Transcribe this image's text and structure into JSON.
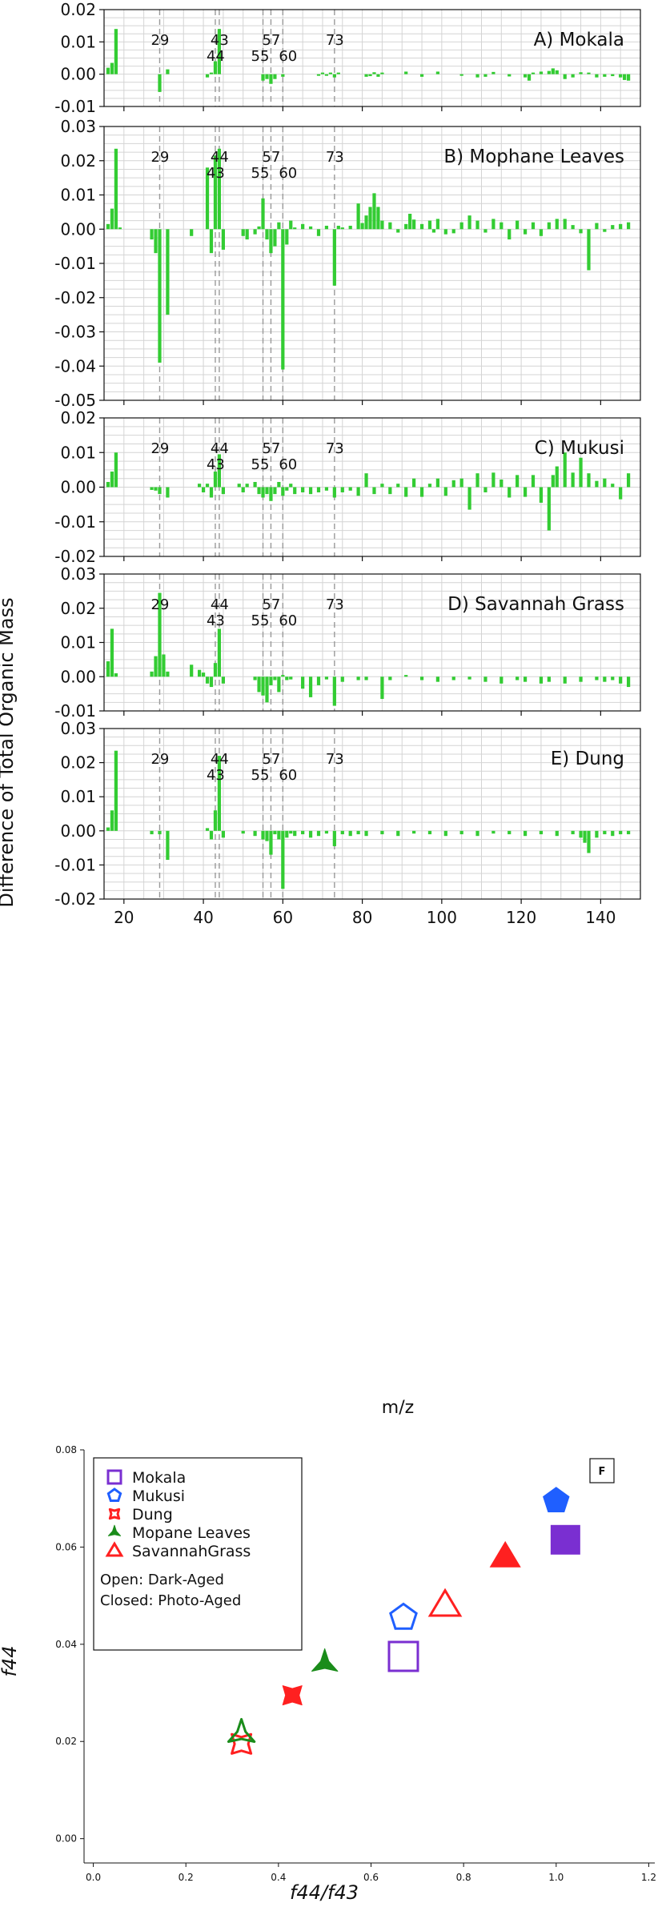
{
  "figure": {
    "ylabel": "Difference of Total Organic Mass",
    "xlabel": "m/z",
    "colors": {
      "bar": "#33cc33",
      "grid": "#d4d4d4",
      "marker_line": "#999999"
    }
  },
  "chart_data": [
    {
      "type": "bar",
      "title": "A) Mokala",
      "ylim": [
        -0.01,
        0.02
      ],
      "yticks": [
        "0.02",
        "0.01",
        "0.00",
        "-0.01"
      ],
      "xlim": [
        15,
        150
      ],
      "xticks": [
        "20",
        "40",
        "60",
        "80",
        "100",
        "120",
        "140"
      ],
      "grid": true,
      "marker_labels": [
        "29",
        "44",
        "43",
        "55",
        "57",
        "60",
        "73"
      ],
      "x": [
        16,
        17,
        18,
        29,
        31,
        41,
        42,
        43,
        44,
        55,
        56,
        57,
        58,
        60,
        69,
        70,
        71,
        72,
        73,
        74,
        81,
        82,
        83,
        84,
        85,
        91,
        95,
        99,
        105,
        109,
        111,
        113,
        117,
        121,
        122,
        123,
        125,
        127,
        128,
        129,
        131,
        133,
        135,
        137,
        139,
        141,
        143,
        145,
        146,
        147
      ],
      "values": [
        0.002,
        0.0035,
        0.014,
        -0.0055,
        0.0015,
        -0.001,
        0.0005,
        0.004,
        0.014,
        -0.002,
        -0.0015,
        -0.003,
        -0.0015,
        -0.0008,
        -0.0005,
        0.0005,
        -0.0005,
        0.0005,
        -0.001,
        0.0005,
        -0.0008,
        -0.0006,
        0.0006,
        -0.0008,
        0.0005,
        0.0008,
        -0.0008,
        0.0008,
        -0.0005,
        -0.001,
        -0.0008,
        0.0007,
        -0.0007,
        -0.001,
        -0.002,
        0.0005,
        0.0008,
        0.001,
        0.0018,
        0.0012,
        -0.0015,
        -0.001,
        0.0006,
        0.0005,
        -0.001,
        -0.0008,
        -0.0006,
        -0.001,
        -0.0018,
        -0.002
      ]
    },
    {
      "type": "bar",
      "title": "B) Mophane Leaves",
      "ylim": [
        -0.05,
        0.03
      ],
      "yticks": [
        "0.03",
        "0.02",
        "0.01",
        "0.00",
        "-0.01",
        "-0.02",
        "-0.03",
        "-0.04",
        "-0.05"
      ],
      "xlim": [
        15,
        150
      ],
      "xticks": [
        "20",
        "40",
        "60",
        "80",
        "100",
        "120",
        "140"
      ],
      "grid": true,
      "marker_labels": [
        "29",
        "44",
        "43",
        "57",
        "55",
        "60",
        "73"
      ],
      "x": [
        16,
        17,
        18,
        19,
        27,
        28,
        29,
        31,
        37,
        41,
        42,
        43,
        44,
        45,
        50,
        51,
        53,
        54,
        55,
        56,
        57,
        58,
        59,
        60,
        61,
        62,
        63,
        65,
        67,
        69,
        71,
        73,
        74,
        75,
        77,
        79,
        80,
        81,
        82,
        83,
        84,
        85,
        87,
        89,
        91,
        92,
        93,
        95,
        97,
        98,
        99,
        101,
        103,
        105,
        107,
        109,
        111,
        113,
        115,
        117,
        119,
        121,
        123,
        125,
        127,
        129,
        131,
        133,
        135,
        137,
        139,
        141,
        143,
        145,
        147
      ],
      "values": [
        0.0015,
        0.006,
        0.0235,
        0.0005,
        -0.003,
        -0.007,
        -0.039,
        -0.025,
        -0.002,
        0.018,
        -0.007,
        0.0215,
        0.0235,
        -0.006,
        -0.002,
        -0.003,
        -0.0015,
        0.0008,
        0.009,
        -0.003,
        -0.007,
        -0.005,
        0.002,
        -0.041,
        -0.0045,
        0.0025,
        0.0005,
        0.0015,
        0.0008,
        -0.002,
        0.001,
        -0.0165,
        0.001,
        0.0005,
        0.001,
        0.0075,
        0.0018,
        0.004,
        0.0065,
        0.0105,
        0.0065,
        0.0025,
        0.002,
        -0.001,
        0.0015,
        0.0045,
        0.0028,
        0.0015,
        0.0025,
        -0.001,
        0.003,
        -0.0015,
        -0.0012,
        0.002,
        0.004,
        0.0025,
        -0.001,
        0.003,
        0.002,
        -0.003,
        0.0025,
        -0.0015,
        0.002,
        -0.002,
        0.002,
        0.003,
        0.003,
        0.0012,
        -0.0012,
        -0.012,
        0.0018,
        -0.0008,
        0.0012,
        0.0015,
        0.002
      ]
    },
    {
      "type": "bar",
      "title": "C) Mukusi",
      "ylim": [
        -0.02,
        0.02
      ],
      "yticks": [
        "0.02",
        "0.01",
        "0.00",
        "-0.01",
        "-0.02"
      ],
      "xlim": [
        15,
        150
      ],
      "xticks": [
        "20",
        "40",
        "60",
        "80",
        "100",
        "120",
        "140"
      ],
      "grid": true,
      "marker_labels": [
        "29",
        "44",
        "43",
        "57",
        "55",
        "60",
        "73"
      ],
      "x": [
        16,
        17,
        18,
        27,
        28,
        29,
        31,
        39,
        40,
        41,
        42,
        43,
        44,
        45,
        49,
        50,
        51,
        53,
        54,
        55,
        56,
        57,
        58,
        59,
        60,
        61,
        62,
        63,
        65,
        67,
        69,
        71,
        73,
        75,
        77,
        79,
        81,
        83,
        85,
        87,
        89,
        91,
        93,
        95,
        97,
        99,
        101,
        103,
        105,
        107,
        109,
        111,
        113,
        115,
        117,
        119,
        121,
        123,
        125,
        127,
        128,
        129,
        131,
        133,
        135,
        137,
        139,
        141,
        143,
        145,
        147
      ],
      "values": [
        0.0015,
        0.0045,
        0.01,
        -0.0008,
        -0.001,
        -0.002,
        -0.003,
        0.001,
        -0.0015,
        0.001,
        -0.003,
        0.0045,
        0.0095,
        -0.002,
        0.001,
        -0.0015,
        0.001,
        0.0015,
        -0.002,
        -0.003,
        -0.002,
        -0.004,
        -0.002,
        0.0015,
        -0.0025,
        -0.001,
        0.001,
        -0.002,
        -0.0015,
        -0.002,
        -0.0015,
        -0.001,
        -0.003,
        -0.0015,
        -0.001,
        -0.0025,
        0.004,
        -0.002,
        0.001,
        -0.002,
        0.001,
        -0.0028,
        0.0025,
        -0.0028,
        0.001,
        0.0025,
        -0.0025,
        0.002,
        0.0025,
        -0.0065,
        0.004,
        -0.0015,
        0.0042,
        0.0022,
        -0.003,
        0.0035,
        -0.0028,
        0.0035,
        -0.0045,
        -0.0125,
        0.0035,
        0.006,
        0.01,
        0.0042,
        0.0085,
        0.004,
        0.0018,
        0.0025,
        0.001,
        -0.0035,
        0.004
      ]
    },
    {
      "type": "bar",
      "title": "D) Savannah Grass",
      "ylim": [
        -0.01,
        0.03
      ],
      "yticks": [
        "0.03",
        "0.02",
        "0.01",
        "0.00",
        "-0.01"
      ],
      "xlim": [
        15,
        150
      ],
      "xticks": [
        "20",
        "40",
        "60",
        "80",
        "100",
        "120",
        "140"
      ],
      "grid": true,
      "marker_labels": [
        "29",
        "44",
        "43",
        "57",
        "55",
        "60",
        "73"
      ],
      "x": [
        16,
        17,
        18,
        27,
        28,
        29,
        30,
        31,
        37,
        39,
        40,
        41,
        42,
        43,
        44,
        45,
        53,
        54,
        55,
        56,
        57,
        58,
        59,
        60,
        61,
        62,
        65,
        67,
        69,
        71,
        73,
        75,
        79,
        81,
        85,
        87,
        91,
        95,
        99,
        103,
        107,
        111,
        115,
        119,
        121,
        125,
        127,
        131,
        135,
        139,
        141,
        143,
        145,
        147
      ],
      "values": [
        0.0045,
        0.014,
        0.001,
        0.0015,
        0.006,
        0.0245,
        0.0065,
        0.0015,
        0.0035,
        0.002,
        0.0012,
        -0.002,
        -0.003,
        0.004,
        0.014,
        -0.002,
        -0.001,
        -0.0045,
        -0.0055,
        -0.0075,
        -0.0025,
        -0.001,
        -0.0045,
        0.0005,
        -0.001,
        -0.0008,
        -0.0035,
        -0.006,
        -0.0025,
        -0.0008,
        -0.0085,
        -0.0015,
        -0.001,
        -0.001,
        -0.0065,
        -0.001,
        0.0005,
        -0.001,
        -0.0015,
        -0.001,
        -0.0008,
        -0.0015,
        -0.002,
        -0.001,
        -0.0015,
        -0.002,
        -0.0015,
        -0.002,
        -0.0015,
        -0.001,
        -0.0015,
        -0.001,
        -0.002,
        -0.003
      ]
    },
    {
      "type": "bar",
      "title": "E) Dung",
      "ylim": [
        -0.02,
        0.03
      ],
      "yticks": [
        "0.03",
        "0.02",
        "0.01",
        "0.00",
        "-0.01",
        "-0.02"
      ],
      "xlim": [
        15,
        150
      ],
      "xticks": [
        "20",
        "40",
        "60",
        "80",
        "100",
        "120",
        "140"
      ],
      "grid": true,
      "marker_labels": [
        "29",
        "44",
        "43",
        "57",
        "55",
        "60",
        "73"
      ],
      "x": [
        16,
        17,
        18,
        27,
        29,
        31,
        41,
        42,
        43,
        44,
        45,
        50,
        53,
        55,
        56,
        57,
        58,
        59,
        60,
        61,
        62,
        63,
        65,
        67,
        69,
        71,
        73,
        75,
        77,
        79,
        81,
        85,
        89,
        93,
        97,
        101,
        105,
        109,
        113,
        117,
        121,
        125,
        129,
        133,
        135,
        136,
        137,
        139,
        141,
        143,
        145,
        147
      ],
      "values": [
        0.001,
        0.006,
        0.0235,
        -0.001,
        -0.001,
        -0.0085,
        0.0008,
        -0.0025,
        0.006,
        0.022,
        -0.002,
        -0.0008,
        -0.0015,
        -0.0025,
        -0.003,
        -0.007,
        -0.001,
        -0.0025,
        -0.017,
        -0.002,
        -0.0008,
        -0.0015,
        -0.001,
        -0.002,
        -0.0015,
        -0.0008,
        -0.0045,
        -0.001,
        -0.0015,
        -0.001,
        -0.0015,
        -0.001,
        -0.0015,
        -0.0008,
        -0.001,
        -0.0015,
        -0.001,
        -0.0015,
        -0.0008,
        -0.001,
        -0.0015,
        -0.001,
        -0.0015,
        -0.001,
        -0.002,
        -0.0035,
        -0.0065,
        -0.002,
        -0.001,
        -0.0015,
        -0.001,
        -0.001
      ]
    },
    {
      "type": "scatter",
      "title": "F",
      "xlabel": "f44/f43",
      "ylabel": "f44",
      "xlim": [
        -0.02,
        1.22
      ],
      "ylim": [
        -0.005,
        0.08
      ],
      "xticks": [
        "0.0",
        "0.2",
        "0.4",
        "0.6",
        "0.8",
        "1.0",
        "1.2"
      ],
      "yticks": [
        "0.00",
        "0.02",
        "0.04",
        "0.06",
        "0.08"
      ],
      "legend": {
        "position": "upper-left",
        "entries": [
          "Mokala",
          "Mukusi",
          "Dung",
          "Mopane Leaves",
          "SavannahGrass"
        ],
        "notes": [
          "Open:   Dark-Aged",
          "Closed: Photo-Aged"
        ]
      },
      "series": [
        {
          "name": "Mokala",
          "color": "#7a2fd1",
          "shape": "square",
          "points": [
            {
              "x": 0.67,
              "y": 0.0375,
              "filled": false
            },
            {
              "x": 1.02,
              "y": 0.0615,
              "filled": true
            }
          ]
        },
        {
          "name": "Mukusi",
          "color": "#1f5fff",
          "shape": "pentagon",
          "points": [
            {
              "x": 0.67,
              "y": 0.0455,
              "filled": false
            },
            {
              "x": 1.0,
              "y": 0.0695,
              "filled": true
            }
          ]
        },
        {
          "name": "Dung",
          "color": "#ff2020",
          "shape": "star4",
          "points": [
            {
              "x": 0.32,
              "y": 0.0195,
              "filled": false
            },
            {
              "x": 0.43,
              "y": 0.0295,
              "filled": true
            }
          ]
        },
        {
          "name": "Mopane Leaves",
          "color": "#1a8c1a",
          "shape": "tri3",
          "points": [
            {
              "x": 0.32,
              "y": 0.0215,
              "filled": false
            },
            {
              "x": 0.5,
              "y": 0.036,
              "filled": true
            }
          ]
        },
        {
          "name": "SavannahGrass",
          "color": "#ff2020",
          "shape": "triangle",
          "points": [
            {
              "x": 0.76,
              "y": 0.048,
              "filled": false
            },
            {
              "x": 0.89,
              "y": 0.058,
              "filled": true
            }
          ]
        }
      ]
    }
  ]
}
